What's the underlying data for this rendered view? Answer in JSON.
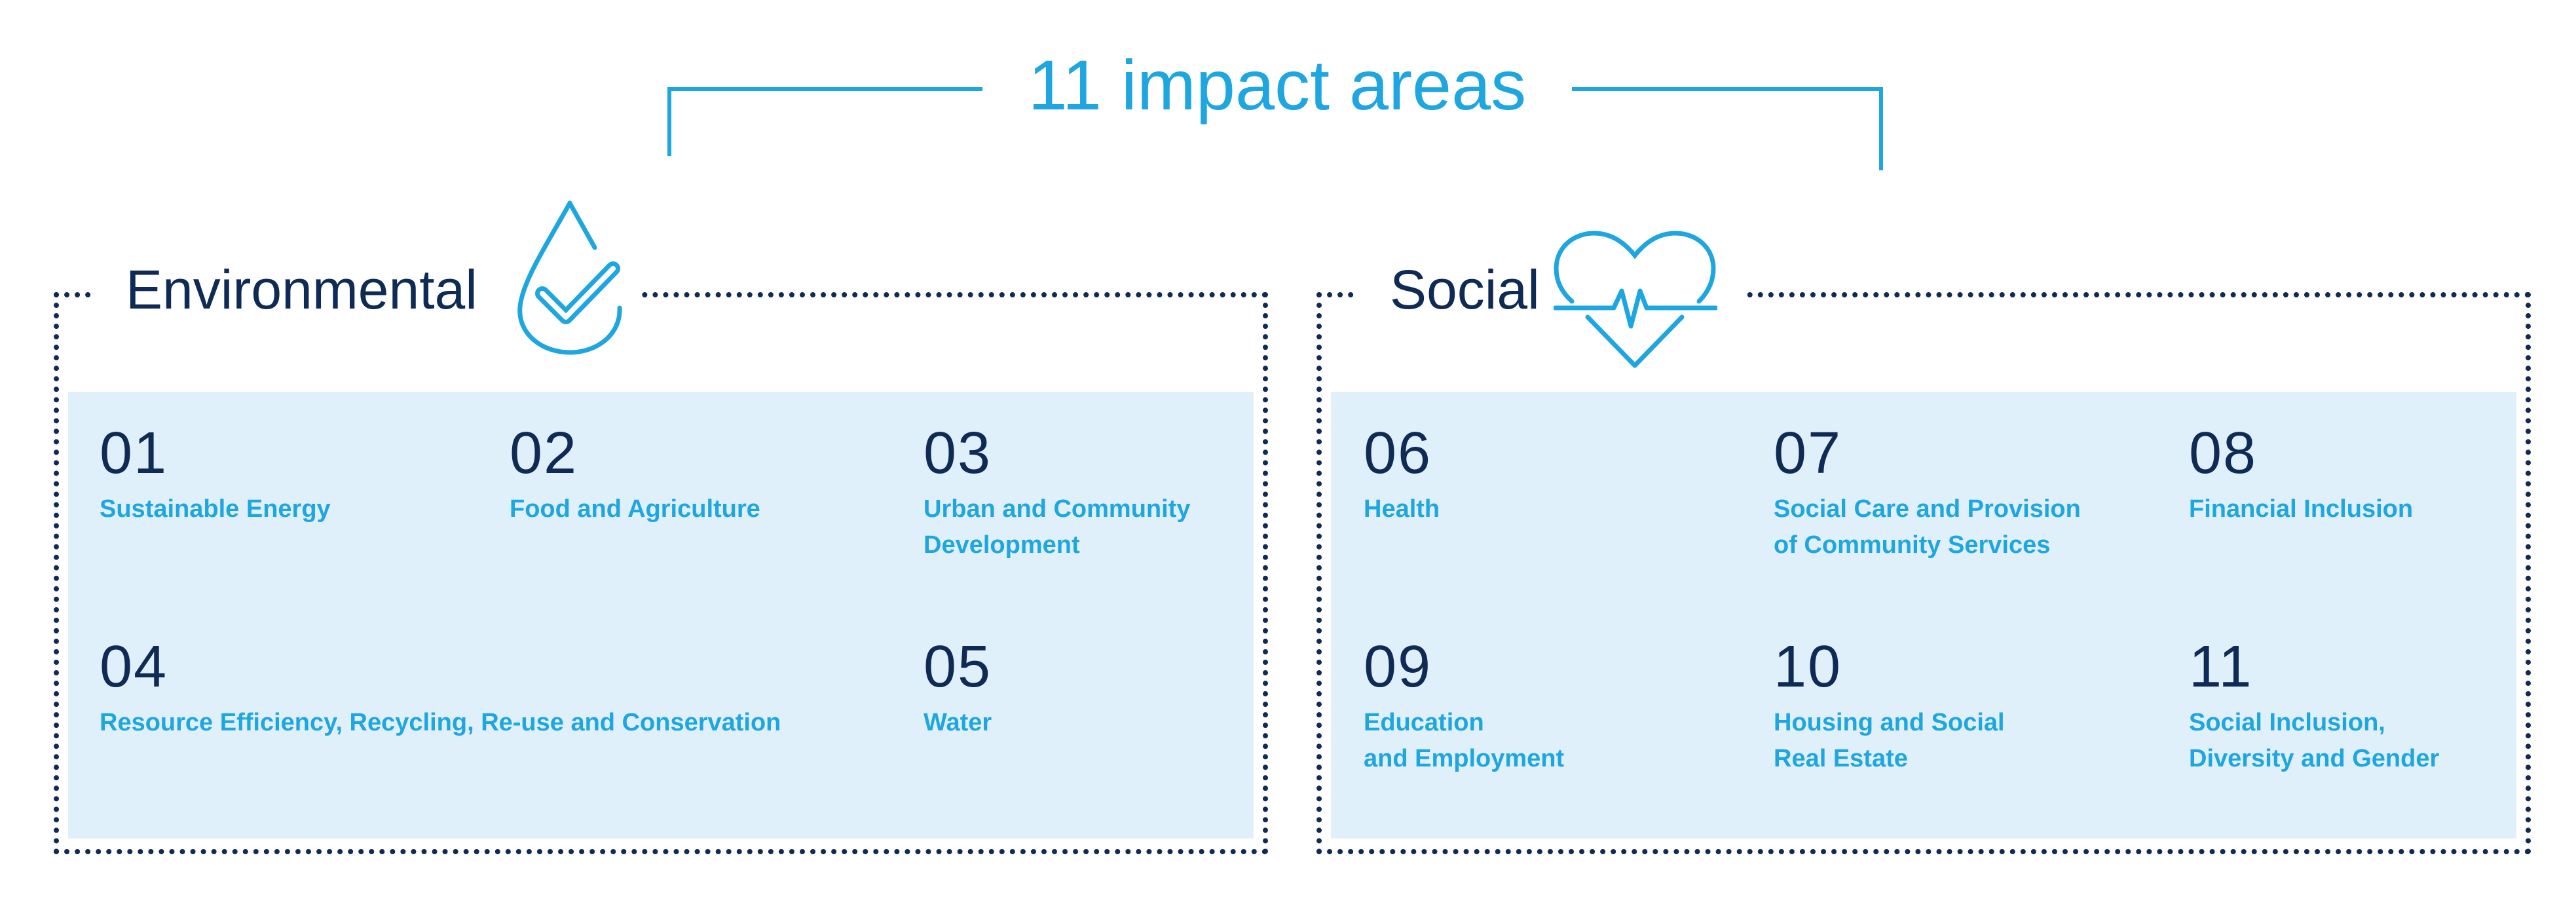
{
  "title": "11 impact areas",
  "colors": {
    "accent": "#1ea6e0",
    "heading": "#0f2a55",
    "panel": "#e0f0fa",
    "border": "#0f2a55"
  },
  "environmental": {
    "title": "Environmental",
    "icon": "water-drop-check-icon",
    "items": [
      {
        "number": "01",
        "label": "Sustainable Energy"
      },
      {
        "number": "02",
        "label": "Food and Agriculture"
      },
      {
        "number": "03",
        "label": "Urban and Community\nDevelopment"
      },
      {
        "number": "04",
        "label": "Resource Efficiency, Recycling, Re-use and Conservation"
      },
      {
        "number": "05",
        "label": "Water"
      }
    ]
  },
  "social": {
    "title": "Social",
    "icon": "heart-pulse-icon",
    "items": [
      {
        "number": "06",
        "label": "Health"
      },
      {
        "number": "07",
        "label": "Social Care and Provision\nof Community Services"
      },
      {
        "number": "08",
        "label": "Financial Inclusion"
      },
      {
        "number": "09",
        "label": "Education\nand Employment"
      },
      {
        "number": "10",
        "label": "Housing and Social\nReal Estate"
      },
      {
        "number": "11",
        "label": "Social Inclusion,\nDiversity and Gender"
      }
    ]
  }
}
